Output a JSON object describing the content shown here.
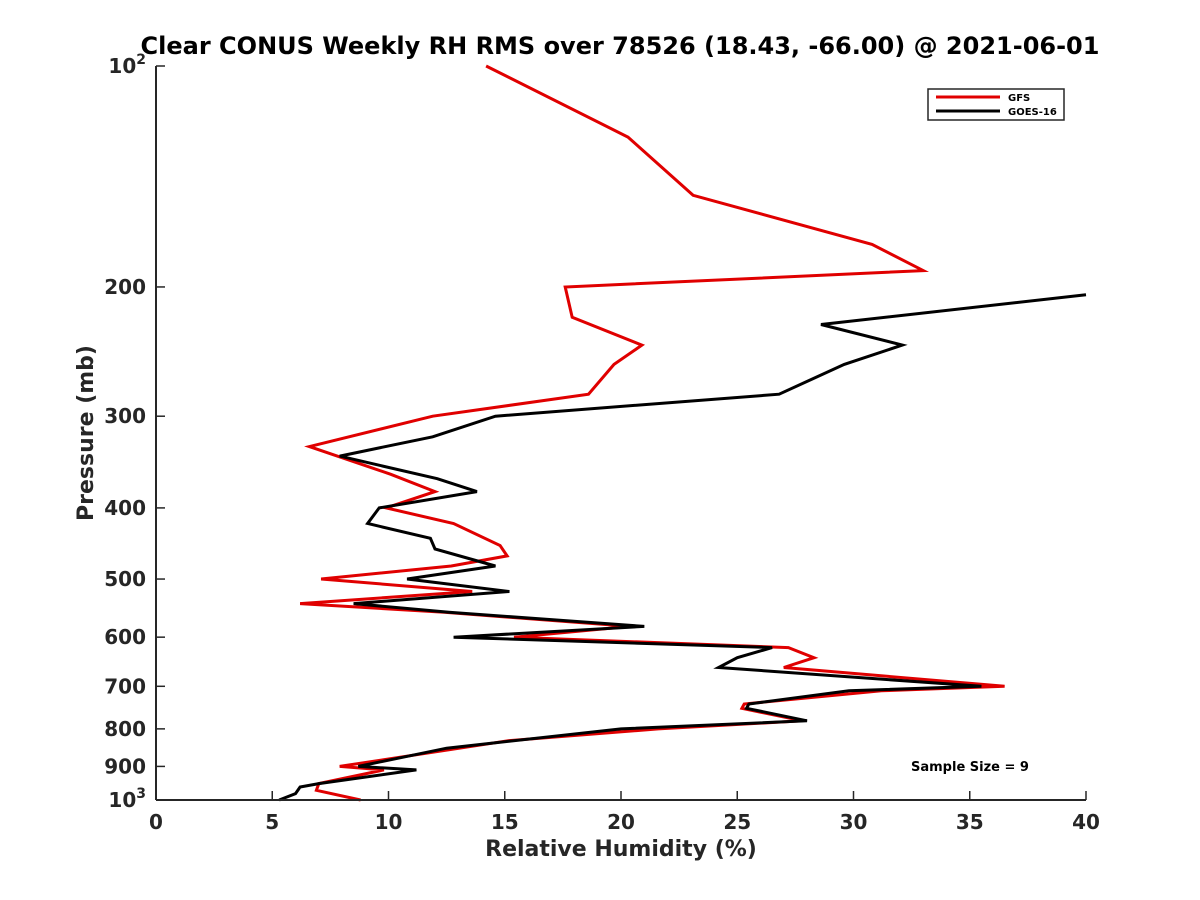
{
  "chart_data": {
    "type": "line",
    "title": "Clear CONUS Weekly RH RMS over 78526 (18.43, -66.00) @ 2021-06-01",
    "xlabel": "Relative Humidity (%)",
    "ylabel": "Pressure (mb)",
    "xlim": [
      0,
      40
    ],
    "ylim": [
      100,
      1000
    ],
    "y_scale": "log",
    "y_reversed": true,
    "x_ticks": [
      "0",
      "5",
      "10",
      "15",
      "20",
      "25",
      "30",
      "35",
      "40"
    ],
    "y_ticks": [
      {
        "value": 100,
        "base": "10",
        "exp": "2"
      },
      {
        "value": 200,
        "label": "200"
      },
      {
        "value": 300,
        "label": "300"
      },
      {
        "value": 400,
        "label": "400"
      },
      {
        "value": 500,
        "label": "500"
      },
      {
        "value": 600,
        "label": "600"
      },
      {
        "value": 700,
        "label": "700"
      },
      {
        "value": 800,
        "label": "800"
      },
      {
        "value": 900,
        "label": "900"
      },
      {
        "value": 1000,
        "base": "10",
        "exp": "3"
      }
    ],
    "legend_position": "top-right",
    "series": [
      {
        "name": "GFS",
        "color": "#e00000",
        "points": [
          [
            14.2,
            100
          ],
          [
            20.3,
            125
          ],
          [
            23.1,
            150
          ],
          [
            30.8,
            175
          ],
          [
            33.0,
            190
          ],
          [
            17.6,
            200
          ],
          [
            17.9,
            220
          ],
          [
            20.9,
            240
          ],
          [
            19.7,
            255
          ],
          [
            18.6,
            280
          ],
          [
            11.9,
            300
          ],
          [
            6.6,
            330
          ],
          [
            10.1,
            360
          ],
          [
            12.0,
            380
          ],
          [
            9.9,
            400
          ],
          [
            12.8,
            420
          ],
          [
            14.8,
            450
          ],
          [
            15.1,
            465
          ],
          [
            12.7,
            480
          ],
          [
            7.1,
            500
          ],
          [
            13.6,
            520
          ],
          [
            6.2,
            540
          ],
          [
            12.4,
            555
          ],
          [
            20.4,
            580
          ],
          [
            15.4,
            600
          ],
          [
            27.2,
            620
          ],
          [
            28.3,
            640
          ],
          [
            27.0,
            660
          ],
          [
            36.5,
            700
          ],
          [
            31.2,
            710
          ],
          [
            25.3,
            740
          ],
          [
            25.2,
            750
          ],
          [
            27.8,
            780
          ],
          [
            21.6,
            800
          ],
          [
            15.2,
            830
          ],
          [
            7.9,
            900
          ],
          [
            9.8,
            910
          ],
          [
            7.0,
            950
          ],
          [
            6.9,
            970
          ],
          [
            8.8,
            1000
          ]
        ]
      },
      {
        "name": "GOES-16",
        "color": "#000000",
        "points": [
          [
            40.0,
            205
          ],
          [
            28.6,
            225
          ],
          [
            32.1,
            240
          ],
          [
            29.6,
            255
          ],
          [
            26.8,
            280
          ],
          [
            14.6,
            300
          ],
          [
            11.9,
            320
          ],
          [
            7.9,
            340
          ],
          [
            12.1,
            365
          ],
          [
            13.8,
            380
          ],
          [
            9.6,
            400
          ],
          [
            9.1,
            420
          ],
          [
            11.8,
            440
          ],
          [
            12.0,
            455
          ],
          [
            14.6,
            480
          ],
          [
            10.8,
            500
          ],
          [
            15.2,
            520
          ],
          [
            8.5,
            540
          ],
          [
            12.6,
            555
          ],
          [
            21.0,
            580
          ],
          [
            12.8,
            600
          ],
          [
            26.5,
            620
          ],
          [
            25.0,
            640
          ],
          [
            24.2,
            660
          ],
          [
            35.5,
            700
          ],
          [
            29.8,
            710
          ],
          [
            25.5,
            740
          ],
          [
            25.4,
            750
          ],
          [
            28.0,
            780
          ],
          [
            20.0,
            800
          ],
          [
            12.5,
            850
          ],
          [
            8.7,
            900
          ],
          [
            11.2,
            910
          ],
          [
            7.0,
            950
          ],
          [
            6.2,
            960
          ],
          [
            6.0,
            980
          ],
          [
            5.3,
            1000
          ]
        ]
      }
    ],
    "annotations": [
      "Sample Size = 9"
    ]
  }
}
